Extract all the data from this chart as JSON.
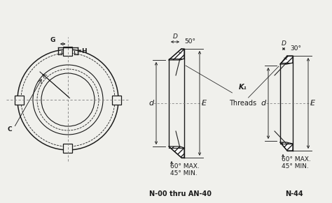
{
  "bg_color": "#f0f0ec",
  "line_color": "#1a1a1a",
  "dashed_color": "#777777",
  "title_left": "N-00 thru AN-40",
  "title_right": "N-44",
  "label_G": "G",
  "label_H": "H",
  "label_C": "C",
  "label_d": "d",
  "label_E": "E",
  "label_D": "D",
  "label_K": "K₁",
  "label_threads": "Threads",
  "angle_left_top": "50°",
  "angle_right_top": "30°",
  "angle_bottom": "60° MAX.\n45° MIN.",
  "font_size": 6.5,
  "lw": 0.9
}
